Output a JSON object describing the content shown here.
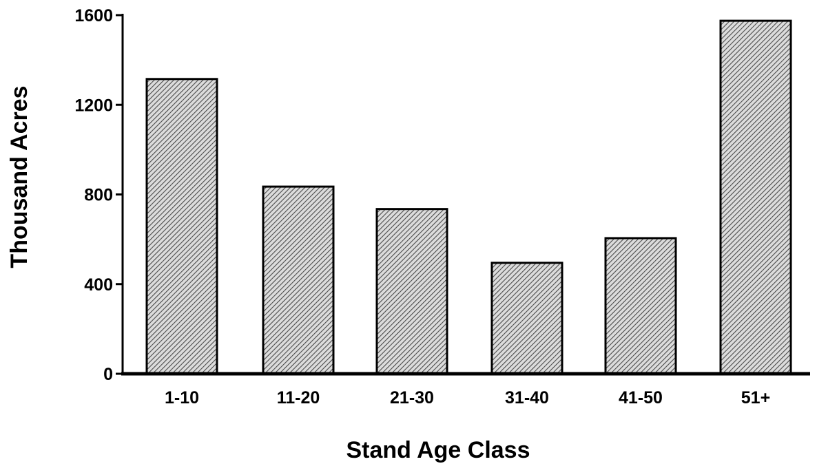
{
  "chart_data": {
    "type": "bar",
    "title": "",
    "xlabel": "Stand Age Class",
    "ylabel": "Thousand Acres",
    "categories": [
      "1-10",
      "11-20",
      "21-30",
      "31-40",
      "41-50",
      "51+"
    ],
    "values": [
      1315,
      835,
      735,
      495,
      605,
      1575
    ],
    "ylim": [
      0,
      1600
    ],
    "yticks": [
      0,
      400,
      800,
      1200,
      1600
    ],
    "ytick_labels": [
      "0",
      "400",
      "800",
      "1200",
      "1600"
    ],
    "grid": false,
    "legend": "none",
    "colors": {
      "bar_fill": "#dcdcdc",
      "bar_hatch": "#4a4a4a",
      "bar_stroke": "#000000",
      "axis": "#000000"
    }
  }
}
